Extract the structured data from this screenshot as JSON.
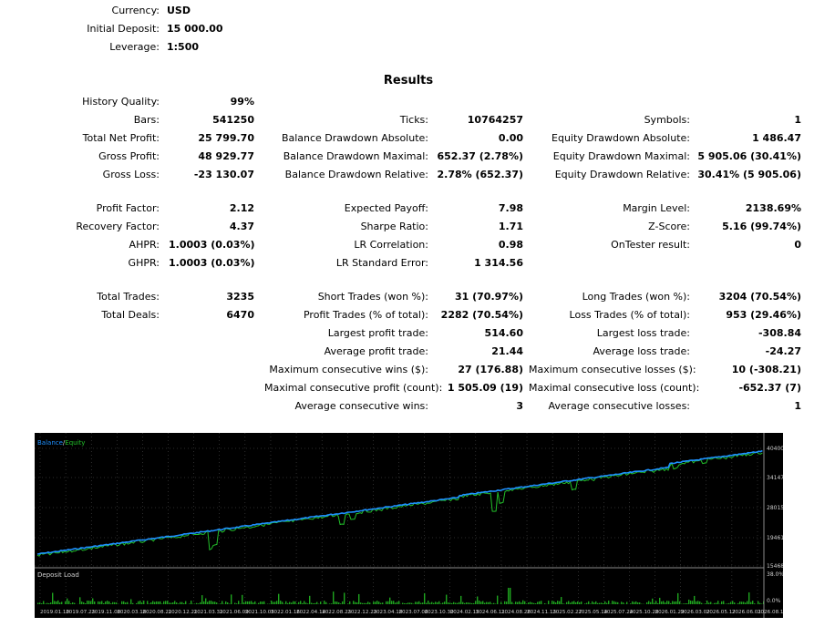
{
  "header": {
    "currency": {
      "label": "Currency:",
      "value": "USD"
    },
    "initial_deposit": {
      "label": "Initial Deposit:",
      "value": "15 000.00"
    },
    "leverage": {
      "label": "Leverage:",
      "value": "1:500"
    }
  },
  "results_title": "Results",
  "col1": [
    {
      "label": "History Quality:",
      "value": "99%"
    },
    {
      "label": "Bars:",
      "value": "541250"
    },
    {
      "label": "Total Net Profit:",
      "value": "25 799.70"
    },
    {
      "label": "Gross Profit:",
      "value": "48 929.77"
    },
    {
      "label": "Gross Loss:",
      "value": "-23 130.07"
    },
    {
      "label": "Profit Factor:",
      "value": "2.12"
    },
    {
      "label": "Recovery Factor:",
      "value": "4.37"
    },
    {
      "label": "AHPR:",
      "value": "1.0003 (0.03%)"
    },
    {
      "label": "GHPR:",
      "value": "1.0003 (0.03%)"
    },
    {
      "label": "Total Trades:",
      "value": "3235"
    },
    {
      "label": "Total Deals:",
      "value": "6470"
    }
  ],
  "col2": [
    {
      "label": "Ticks:",
      "value": "10764257"
    },
    {
      "label": "Balance Drawdown Absolute:",
      "value": "0.00"
    },
    {
      "label": "Balance Drawdown Maximal:",
      "value": "652.37 (2.78%)"
    },
    {
      "label": "Balance Drawdown Relative:",
      "value": "2.78% (652.37)"
    },
    {
      "label": "Expected Payoff:",
      "value": "7.98"
    },
    {
      "label": "Sharpe Ratio:",
      "value": "1.71"
    },
    {
      "label": "LR Correlation:",
      "value": "0.98"
    },
    {
      "label": "LR Standard Error:",
      "value": "1 314.56"
    },
    {
      "label": "Short Trades (won %):",
      "value": "31 (70.97%)"
    },
    {
      "label": "Profit Trades (% of total):",
      "value": "2282 (70.54%)"
    },
    {
      "label": "Largest profit trade:",
      "value": "514.60"
    },
    {
      "label": "Average profit trade:",
      "value": "21.44"
    },
    {
      "label": "Maximum consecutive wins ($):",
      "value": "27 (176.88)"
    },
    {
      "label": "Maximal consecutive profit (count):",
      "value": "1 505.09 (19)"
    },
    {
      "label": "Average consecutive wins:",
      "value": "3"
    }
  ],
  "col3": [
    {
      "label": "Symbols:",
      "value": "1"
    },
    {
      "label": "Equity Drawdown Absolute:",
      "value": "1 486.47"
    },
    {
      "label": "Equity Drawdown Maximal:",
      "value": "5 905.06 (30.41%)"
    },
    {
      "label": "Equity Drawdown Relative:",
      "value": "30.41% (5 905.06)"
    },
    {
      "label": "Margin Level:",
      "value": "2138.69%"
    },
    {
      "label": "Z-Score:",
      "value": "5.16 (99.74%)"
    },
    {
      "label": "OnTester result:",
      "value": "0"
    },
    {
      "label": "Long Trades (won %):",
      "value": "3204 (70.54%)"
    },
    {
      "label": "Loss Trades (% of total):",
      "value": "953 (29.46%)"
    },
    {
      "label": "Largest loss trade:",
      "value": "-308.84"
    },
    {
      "label": "Average loss trade:",
      "value": "-24.27"
    },
    {
      "label": "Maximum consecutive losses ($):",
      "value": "10 (-308.21)"
    },
    {
      "label": "Maximal consecutive loss (count):",
      "value": "-652.37 (7)"
    },
    {
      "label": "Average consecutive losses:",
      "value": "1"
    }
  ],
  "chart": {
    "legend_balance": "Balance",
    "legend_separator": "/",
    "legend_equity": "Equity",
    "deposit_load_label": "Deposit Load",
    "y_ticks": [
      "40400",
      "34147",
      "28015",
      "19461",
      "15468"
    ],
    "load_ticks": [
      "38.0%",
      "0.0%"
    ],
    "x_ticks": [
      "2019.01.10",
      "2019.07.23",
      "2019.11.08",
      "2020.03.18",
      "2020.08.21",
      "2020.12.21",
      "2021.03.31",
      "2021.06.09",
      "2021.10.05",
      "2022.01.16",
      "2022.04.14",
      "2022.08.23",
      "2022.12.23",
      "2023.04.18",
      "2023.07.06",
      "2023.10.30",
      "2024.02.15",
      "2024.06.11",
      "2024.08.28",
      "2024.11.13",
      "2025.02.27",
      "2025.05.14",
      "2025.07.24",
      "2025.10.28",
      "2026.01.29",
      "2026.03.02",
      "2026.05.12",
      "2026.06.01",
      "2026.08.18"
    ],
    "colors": {
      "background": "#000000",
      "balance": "#1e90ff",
      "equity": "#22c02a",
      "grid": "#5a5a5a",
      "axis_text": "#d0d0d0",
      "load": "#1fa51f"
    }
  }
}
